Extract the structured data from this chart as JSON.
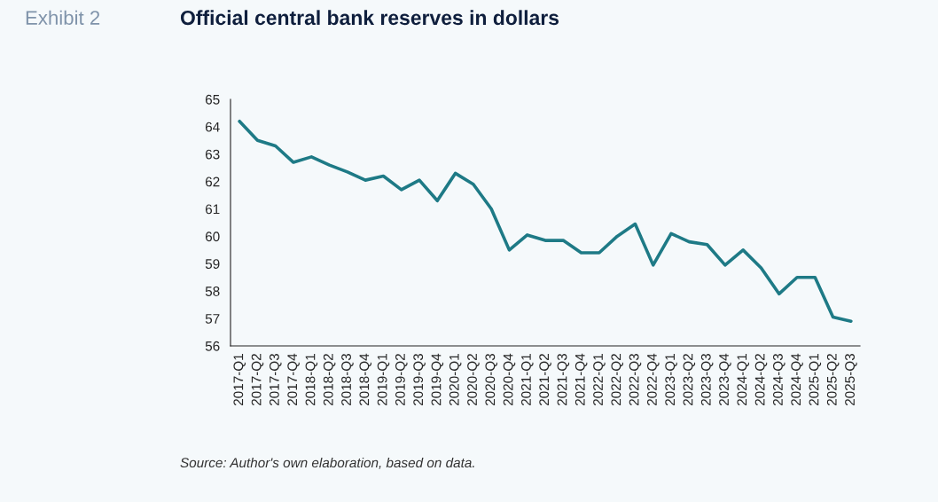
{
  "chart_data": {
    "type": "line",
    "title": "Official central bank reserves in dollars",
    "subtitle": "Exhibit 2",
    "categories": [
      "2017-Q1",
      "2017-Q2",
      "2017-Q3",
      "2017-Q4",
      "2018-Q1",
      "2018-Q2",
      "2018-Q3",
      "2018-Q4",
      "2019-Q1",
      "2019-Q2",
      "2019-Q3",
      "2019-Q4",
      "2020-Q1",
      "2020-Q2",
      "2020-Q3",
      "2020-Q4",
      "2021-Q1",
      "2021-Q2",
      "2021-Q3",
      "2021-Q4",
      "2022-Q1",
      "2022-Q2",
      "2022-Q3",
      "2022-Q4",
      "2023-Q1",
      "2023-Q2",
      "2023-Q3",
      "2023-Q4",
      "2024-Q1",
      "2024-Q2",
      "2024-Q3",
      "2024-Q4",
      "2025-Q1",
      "2025-Q2",
      "2025-Q3"
    ],
    "series": [
      {
        "color": "#1e7a86",
        "values": [
          64.2,
          63.5,
          63.3,
          62.7,
          62.9,
          62.6,
          62.35,
          62.05,
          62.2,
          61.7,
          62.05,
          61.3,
          62.3,
          61.9,
          61.0,
          59.5,
          60.05,
          59.85,
          59.85,
          59.4,
          59.4,
          60.0,
          60.45,
          58.95,
          60.1,
          59.8,
          59.7,
          58.95,
          59.5,
          58.85,
          57.9,
          58.5,
          58.5,
          57.05,
          56.9
        ]
      }
    ],
    "ylim": [
      56,
      65
    ],
    "yticks": [
      56,
      57,
      58,
      59,
      60,
      61,
      62,
      63,
      64,
      65
    ],
    "grid": false,
    "marker": "none",
    "line_style": "solid",
    "annotations": [
      "Source: Author's own elaboration, based on data."
    ]
  }
}
